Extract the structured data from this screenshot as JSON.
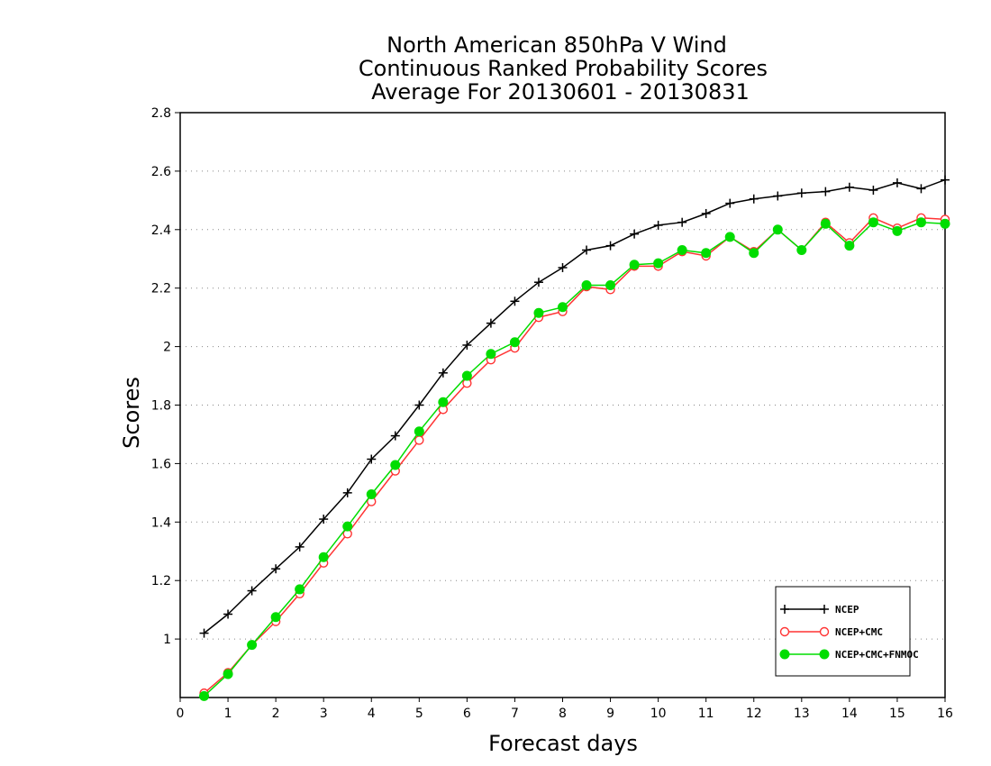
{
  "chart_data": {
    "type": "line",
    "title_lines": [
      "North American 850hPa V Wind",
      "Continuous Ranked Probability Scores",
      "Average For 20130601 - 20130831"
    ],
    "xlabel": "Forecast days",
    "ylabel": "Scores",
    "xlim": [
      0,
      16
    ],
    "ylim": [
      0.8,
      2.8
    ],
    "xticks": [
      "0",
      "1",
      "2",
      "3",
      "4",
      "5",
      "6",
      "7",
      "8",
      "9",
      "10",
      "11",
      "12",
      "13",
      "14",
      "15",
      "16"
    ],
    "yticks": [
      "1",
      "1.2",
      "1.4",
      "1.6",
      "1.8",
      "2",
      "2.2",
      "2.4",
      "2.6",
      "2.8"
    ],
    "grid": "horizontal-dotted",
    "legend_position": "bottom-right",
    "x": [
      0.5,
      1,
      1.5,
      2,
      2.5,
      3,
      3.5,
      4,
      4.5,
      5,
      5.5,
      6,
      6.5,
      7,
      7.5,
      8,
      8.5,
      9,
      9.5,
      10,
      10.5,
      11,
      11.5,
      12,
      12.5,
      13,
      13.5,
      14,
      14.5,
      15,
      15.5,
      16
    ],
    "series": [
      {
        "name": "NCEP",
        "color": "#000000",
        "marker": "plus",
        "values": [
          1.02,
          1.085,
          1.165,
          1.24,
          1.315,
          1.41,
          1.5,
          1.615,
          1.695,
          1.8,
          1.91,
          2.005,
          2.08,
          2.155,
          2.22,
          2.27,
          2.33,
          2.345,
          2.385,
          2.415,
          2.425,
          2.455,
          2.49,
          2.505,
          2.515,
          2.525,
          2.53,
          2.545,
          2.535,
          2.56,
          2.54,
          2.57
        ]
      },
      {
        "name": "NCEP+CMC",
        "color": "#ff3333",
        "marker": "open-circle",
        "values": [
          0.815,
          0.885,
          0.98,
          1.06,
          1.155,
          1.26,
          1.36,
          1.47,
          1.575,
          1.68,
          1.785,
          1.875,
          1.955,
          1.995,
          2.1,
          2.12,
          2.205,
          2.195,
          2.275,
          2.275,
          2.325,
          2.31,
          2.375,
          2.325,
          2.4,
          2.33,
          2.425,
          2.355,
          2.44,
          2.405,
          2.44,
          2.435
        ]
      },
      {
        "name": "NCEP+CMC+FNMOC",
        "color": "#00dd00",
        "marker": "filled-circle",
        "values": [
          0.805,
          0.88,
          0.98,
          1.075,
          1.17,
          1.28,
          1.385,
          1.495,
          1.595,
          1.71,
          1.81,
          1.9,
          1.975,
          2.015,
          2.115,
          2.135,
          2.21,
          2.21,
          2.28,
          2.285,
          2.33,
          2.32,
          2.375,
          2.32,
          2.4,
          2.33,
          2.42,
          2.345,
          2.425,
          2.395,
          2.425,
          2.42
        ]
      }
    ]
  }
}
